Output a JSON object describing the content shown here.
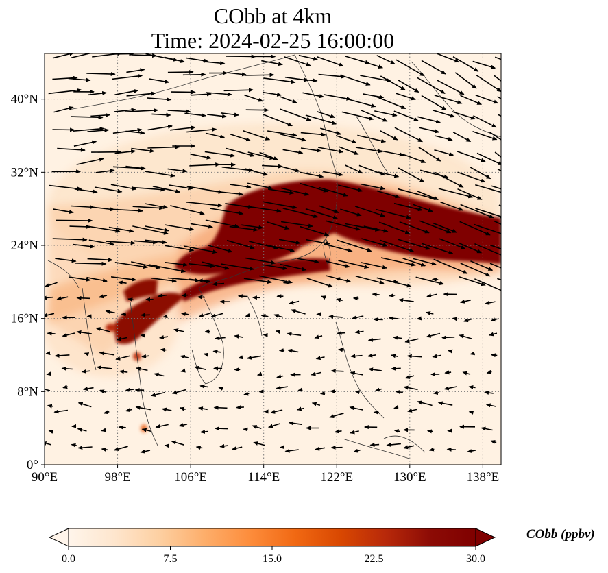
{
  "title": "CObb at 4km",
  "subtitle": "Time: 2024-02-25 16:00:00",
  "map": {
    "extent": {
      "lon": [
        90,
        140
      ],
      "lat": [
        0,
        45
      ]
    },
    "lon_ticks": [
      {
        "v": 90,
        "label": "90°E"
      },
      {
        "v": 98,
        "label": "98°E"
      },
      {
        "v": 106,
        "label": "106°E"
      },
      {
        "v": 114,
        "label": "114°E"
      },
      {
        "v": 122,
        "label": "122°E"
      },
      {
        "v": 130,
        "label": "130°E"
      },
      {
        "v": 138,
        "label": "138°E"
      }
    ],
    "lat_ticks": [
      {
        "v": 0,
        "label": "0°"
      },
      {
        "v": 8,
        "label": "8°N"
      },
      {
        "v": 16,
        "label": "16°N"
      },
      {
        "v": 24,
        "label": "24°N"
      },
      {
        "v": 32,
        "label": "32°N"
      },
      {
        "v": 40,
        "label": "40°N"
      }
    ],
    "gridlines": true
  },
  "colorbar": {
    "label": "CObb (ppbv)",
    "ticks": [
      "0.0",
      "7.5",
      "15.0",
      "22.5",
      "30.0"
    ],
    "range": [
      0,
      30
    ],
    "colors": [
      "#fff5eb",
      "#fee6ce",
      "#fdd0a2",
      "#fdae6b",
      "#fd8d3c",
      "#f16913",
      "#d94801",
      "#b8290a",
      "#8c0b05",
      "#7f0000"
    ]
  }
}
